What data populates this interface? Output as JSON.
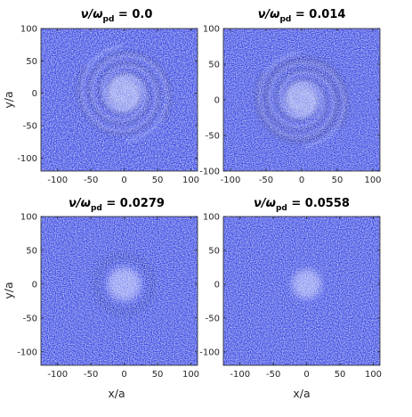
{
  "colors": {
    "particle": "#2f3fe0",
    "background": "#ffffff",
    "axis": "#262626"
  },
  "x_axis_label": "x/a",
  "y_axis_label": "y/a",
  "chart_data": [
    {
      "type": "scatter",
      "title_prefix": "ν/ω",
      "title_subscript": "pd",
      "title_value": " = 0.0",
      "xlim": [
        -125,
        110
      ],
      "ylim": [
        -120,
        100
      ],
      "xticks": [
        -100,
        -50,
        0,
        50,
        100
      ],
      "yticks": [
        100,
        50,
        0,
        -50,
        -100
      ],
      "show_xlabel": false,
      "show_ylabel": true,
      "structure": {
        "spiral": true,
        "spiral_arm_count": 2,
        "spiral_extent": 65,
        "core_radius": 28,
        "ring_radius": 0
      }
    },
    {
      "type": "scatter",
      "title_prefix": "ν/ω",
      "title_subscript": "pd",
      "title_value": " = 0.014",
      "xlim": [
        -110,
        110
      ],
      "ylim": [
        -100,
        100
      ],
      "xticks": [
        -100,
        -50,
        0,
        50,
        100
      ],
      "yticks": [
        100,
        50,
        0,
        -50,
        -100
      ],
      "show_xlabel": false,
      "show_ylabel": false,
      "structure": {
        "spiral": true,
        "spiral_arm_count": 2,
        "spiral_extent": 60,
        "core_radius": 25,
        "ring_radius": 55
      }
    },
    {
      "type": "scatter",
      "title_prefix": "ν/ω",
      "title_subscript": "pd",
      "title_value": " = 0.0279",
      "xlim": [
        -125,
        110
      ],
      "ylim": [
        -120,
        100
      ],
      "xticks": [
        -100,
        -50,
        0,
        50,
        100
      ],
      "yticks": [
        100,
        50,
        0,
        -50,
        -100
      ],
      "show_xlabel": true,
      "show_ylabel": true,
      "structure": {
        "spiral": false,
        "spiral_arm_count": 0,
        "spiral_extent": 0,
        "core_radius": 25,
        "ring_radius": 42
      }
    },
    {
      "type": "scatter",
      "title_prefix": "ν/ω",
      "title_subscript": "pd",
      "title_value": " = 0.0558",
      "xlim": [
        -125,
        110
      ],
      "ylim": [
        -120,
        100
      ],
      "xticks": [
        -100,
        -50,
        0,
        50,
        100
      ],
      "yticks": [
        100,
        50,
        0,
        -50,
        -100
      ],
      "show_xlabel": true,
      "show_ylabel": false,
      "structure": {
        "spiral": false,
        "spiral_arm_count": 0,
        "spiral_extent": 0,
        "core_radius": 22,
        "ring_radius": 0
      }
    }
  ]
}
